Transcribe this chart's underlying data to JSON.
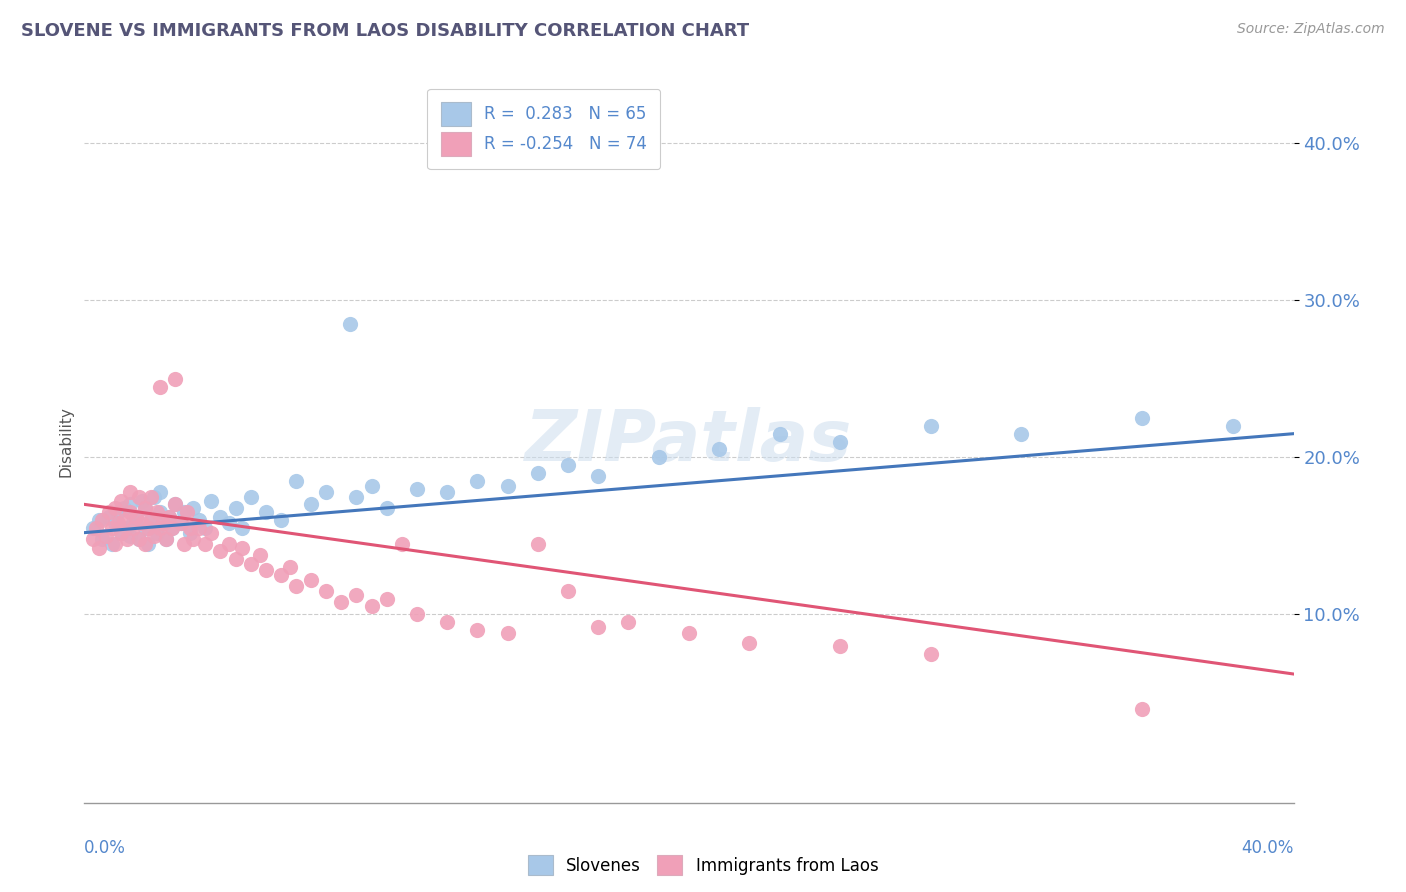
{
  "title": "SLOVENE VS IMMIGRANTS FROM LAOS DISABILITY CORRELATION CHART",
  "source": "Source: ZipAtlas.com",
  "ylabel": "Disability",
  "xlim": [
    0.0,
    0.4
  ],
  "ylim": [
    -0.02,
    0.44
  ],
  "yticks": [
    0.1,
    0.2,
    0.3,
    0.4
  ],
  "ytick_labels": [
    "10.0%",
    "20.0%",
    "30.0%",
    "40.0%"
  ],
  "legend_r1": "R =  0.283",
  "legend_n1": "N = 65",
  "legend_r2": "R = -0.254",
  "legend_n2": "N = 74",
  "slovene_color": "#a8c8e8",
  "laos_color": "#f0a0b8",
  "line_blue": "#4477bb",
  "line_pink": "#e05575",
  "background_color": "#ffffff",
  "slovene_points": [
    [
      0.003,
      0.155
    ],
    [
      0.005,
      0.16
    ],
    [
      0.006,
      0.148
    ],
    [
      0.008,
      0.162
    ],
    [
      0.009,
      0.145
    ],
    [
      0.01,
      0.158
    ],
    [
      0.011,
      0.165
    ],
    [
      0.012,
      0.152
    ],
    [
      0.013,
      0.168
    ],
    [
      0.014,
      0.155
    ],
    [
      0.015,
      0.15
    ],
    [
      0.015,
      0.17
    ],
    [
      0.016,
      0.158
    ],
    [
      0.017,
      0.162
    ],
    [
      0.018,
      0.148
    ],
    [
      0.019,
      0.172
    ],
    [
      0.02,
      0.155
    ],
    [
      0.02,
      0.168
    ],
    [
      0.021,
      0.145
    ],
    [
      0.022,
      0.16
    ],
    [
      0.023,
      0.175
    ],
    [
      0.024,
      0.152
    ],
    [
      0.025,
      0.165
    ],
    [
      0.025,
      0.178
    ],
    [
      0.026,
      0.158
    ],
    [
      0.027,
      0.148
    ],
    [
      0.028,
      0.162
    ],
    [
      0.029,
      0.155
    ],
    [
      0.03,
      0.17
    ],
    [
      0.032,
      0.158
    ],
    [
      0.033,
      0.165
    ],
    [
      0.035,
      0.152
    ],
    [
      0.036,
      0.168
    ],
    [
      0.038,
      0.16
    ],
    [
      0.04,
      0.155
    ],
    [
      0.042,
      0.172
    ],
    [
      0.045,
      0.162
    ],
    [
      0.048,
      0.158
    ],
    [
      0.05,
      0.168
    ],
    [
      0.052,
      0.155
    ],
    [
      0.055,
      0.175
    ],
    [
      0.06,
      0.165
    ],
    [
      0.065,
      0.16
    ],
    [
      0.07,
      0.185
    ],
    [
      0.075,
      0.17
    ],
    [
      0.08,
      0.178
    ],
    [
      0.09,
      0.175
    ],
    [
      0.095,
      0.182
    ],
    [
      0.1,
      0.168
    ],
    [
      0.11,
      0.18
    ],
    [
      0.12,
      0.178
    ],
    [
      0.13,
      0.185
    ],
    [
      0.14,
      0.182
    ],
    [
      0.15,
      0.19
    ],
    [
      0.16,
      0.195
    ],
    [
      0.17,
      0.188
    ],
    [
      0.19,
      0.2
    ],
    [
      0.21,
      0.205
    ],
    [
      0.23,
      0.215
    ],
    [
      0.25,
      0.21
    ],
    [
      0.28,
      0.22
    ],
    [
      0.31,
      0.215
    ],
    [
      0.35,
      0.225
    ],
    [
      0.38,
      0.22
    ],
    [
      0.088,
      0.285
    ]
  ],
  "laos_points": [
    [
      0.003,
      0.148
    ],
    [
      0.004,
      0.155
    ],
    [
      0.005,
      0.142
    ],
    [
      0.006,
      0.16
    ],
    [
      0.007,
      0.15
    ],
    [
      0.008,
      0.165
    ],
    [
      0.009,
      0.155
    ],
    [
      0.01,
      0.145
    ],
    [
      0.01,
      0.168
    ],
    [
      0.011,
      0.158
    ],
    [
      0.012,
      0.152
    ],
    [
      0.012,
      0.172
    ],
    [
      0.013,
      0.16
    ],
    [
      0.014,
      0.148
    ],
    [
      0.015,
      0.165
    ],
    [
      0.015,
      0.178
    ],
    [
      0.016,
      0.155
    ],
    [
      0.017,
      0.162
    ],
    [
      0.018,
      0.148
    ],
    [
      0.018,
      0.175
    ],
    [
      0.019,
      0.158
    ],
    [
      0.02,
      0.145
    ],
    [
      0.02,
      0.168
    ],
    [
      0.021,
      0.155
    ],
    [
      0.022,
      0.16
    ],
    [
      0.022,
      0.175
    ],
    [
      0.023,
      0.15
    ],
    [
      0.024,
      0.165
    ],
    [
      0.025,
      0.155
    ],
    [
      0.025,
      0.245
    ],
    [
      0.026,
      0.158
    ],
    [
      0.027,
      0.148
    ],
    [
      0.028,
      0.162
    ],
    [
      0.029,
      0.155
    ],
    [
      0.03,
      0.17
    ],
    [
      0.03,
      0.25
    ],
    [
      0.032,
      0.158
    ],
    [
      0.033,
      0.145
    ],
    [
      0.034,
      0.165
    ],
    [
      0.035,
      0.155
    ],
    [
      0.036,
      0.148
    ],
    [
      0.038,
      0.155
    ],
    [
      0.04,
      0.145
    ],
    [
      0.042,
      0.152
    ],
    [
      0.045,
      0.14
    ],
    [
      0.048,
      0.145
    ],
    [
      0.05,
      0.135
    ],
    [
      0.052,
      0.142
    ],
    [
      0.055,
      0.132
    ],
    [
      0.058,
      0.138
    ],
    [
      0.06,
      0.128
    ],
    [
      0.065,
      0.125
    ],
    [
      0.068,
      0.13
    ],
    [
      0.07,
      0.118
    ],
    [
      0.075,
      0.122
    ],
    [
      0.08,
      0.115
    ],
    [
      0.085,
      0.108
    ],
    [
      0.09,
      0.112
    ],
    [
      0.095,
      0.105
    ],
    [
      0.1,
      0.11
    ],
    [
      0.105,
      0.145
    ],
    [
      0.11,
      0.1
    ],
    [
      0.12,
      0.095
    ],
    [
      0.13,
      0.09
    ],
    [
      0.14,
      0.088
    ],
    [
      0.15,
      0.145
    ],
    [
      0.16,
      0.115
    ],
    [
      0.17,
      0.092
    ],
    [
      0.18,
      0.095
    ],
    [
      0.2,
      0.088
    ],
    [
      0.22,
      0.082
    ],
    [
      0.25,
      0.08
    ],
    [
      0.28,
      0.075
    ],
    [
      0.35,
      0.04
    ]
  ],
  "blue_line_x": [
    0.0,
    0.4
  ],
  "blue_line_y": [
    0.152,
    0.215
  ],
  "pink_line_x": [
    0.0,
    0.4
  ],
  "pink_line_y": [
    0.17,
    0.062
  ]
}
